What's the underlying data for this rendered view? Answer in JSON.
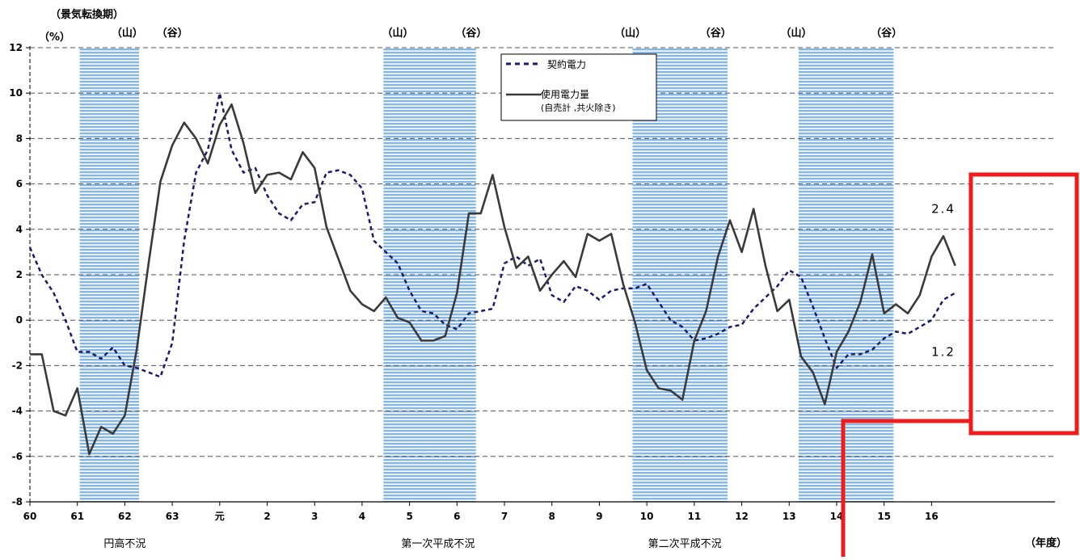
{
  "chart_data": {
    "type": "line",
    "y_unit_label": "（景気転換期）",
    "y_axis_label": "（%）",
    "x_unit_label": "（年度）",
    "ylim": [
      -8,
      12
    ],
    "yticks": [
      -8,
      -6,
      -4,
      -2,
      0,
      2,
      4,
      6,
      8,
      10,
      12
    ],
    "xlim": [
      60,
      81.6
    ],
    "xticks": [
      {
        "x": 60,
        "label": "60"
      },
      {
        "x": 61,
        "label": "61"
      },
      {
        "x": 62,
        "label": "62"
      },
      {
        "x": 63,
        "label": "63"
      },
      {
        "x": 64,
        "label": "元"
      },
      {
        "x": 65,
        "label": "2"
      },
      {
        "x": 66,
        "label": "3"
      },
      {
        "x": 67,
        "label": "4"
      },
      {
        "x": 68,
        "label": "5"
      },
      {
        "x": 69,
        "label": "6"
      },
      {
        "x": 70,
        "label": "7"
      },
      {
        "x": 71,
        "label": "8"
      },
      {
        "x": 72,
        "label": "9"
      },
      {
        "x": 73,
        "label": "10"
      },
      {
        "x": 74,
        "label": "11"
      },
      {
        "x": 75,
        "label": "12"
      },
      {
        "x": 76,
        "label": "13"
      },
      {
        "x": 77,
        "label": "14"
      },
      {
        "x": 78,
        "label": "15"
      },
      {
        "x": 79,
        "label": "16"
      }
    ],
    "grid": true,
    "recession_bands": [
      {
        "start": 61.05,
        "end": 62.3
      },
      {
        "start": 67.45,
        "end": 69.4
      },
      {
        "start": 72.7,
        "end": 74.7
      },
      {
        "start": 76.2,
        "end": 78.2
      }
    ],
    "turning_points": [
      {
        "label": "（山）",
        "x": 62.05
      },
      {
        "label": "（谷）",
        "x": 63.0
      },
      {
        "label": "（山）",
        "x": 67.75
      },
      {
        "label": "（谷）",
        "x": 69.3
      },
      {
        "label": "（山）",
        "x": 72.65
      },
      {
        "label": "（谷）",
        "x": 74.45
      },
      {
        "label": "（山）",
        "x": 76.15
      },
      {
        "label": "（谷）",
        "x": 78.05
      }
    ],
    "period_labels": [
      {
        "label": "円高不況",
        "x": 62.0
      },
      {
        "label": "第一次平成不況",
        "x": 68.6
      },
      {
        "label": "第二次平成不況",
        "x": 73.8
      }
    ],
    "series": [
      {
        "name": "契約電力",
        "style": "dashed",
        "color": "#1a1a6e",
        "x": [
          60.0,
          60.25,
          60.5,
          60.75,
          61.0,
          61.25,
          61.5,
          61.75,
          62.0,
          62.25,
          62.5,
          62.75,
          63.0,
          63.25,
          63.5,
          63.75,
          64.0,
          64.25,
          64.5,
          64.75,
          65.0,
          65.25,
          65.5,
          65.75,
          66.0,
          66.25,
          66.5,
          66.75,
          67.0,
          67.25,
          67.5,
          67.75,
          68.0,
          68.25,
          68.5,
          68.75,
          69.0,
          69.25,
          69.5,
          69.75,
          70.0,
          70.25,
          70.5,
          70.75,
          71.0,
          71.25,
          71.5,
          71.75,
          72.0,
          72.25,
          72.5,
          72.75,
          73.0,
          73.25,
          73.5,
          73.75,
          74.0,
          74.25,
          74.5,
          74.75,
          75.0,
          75.25,
          75.5,
          75.75,
          76.0,
          76.25,
          76.5,
          76.75,
          77.0,
          77.25,
          77.5,
          77.75,
          78.0,
          78.25,
          78.5,
          78.75,
          79.0,
          79.25,
          79.5
        ],
        "values": [
          3.2,
          2.0,
          1.2,
          0.0,
          -1.4,
          -1.4,
          -1.7,
          -1.2,
          -2.0,
          -2.1,
          -2.3,
          -2.5,
          -1.0,
          3.5,
          6.5,
          7.5,
          10.0,
          7.5,
          6.5,
          6.7,
          5.5,
          4.7,
          4.4,
          5.1,
          5.2,
          6.5,
          6.6,
          6.4,
          5.8,
          3.5,
          3.0,
          2.5,
          1.3,
          0.4,
          0.3,
          -0.2,
          -0.4,
          0.3,
          0.4,
          0.5,
          2.5,
          2.8,
          2.4,
          2.7,
          1.1,
          0.8,
          1.5,
          1.3,
          0.9,
          1.3,
          1.4,
          1.4,
          1.6,
          0.8,
          0.0,
          -0.3,
          -0.9,
          -0.8,
          -0.6,
          -0.3,
          -0.2,
          0.5,
          1.0,
          1.5,
          2.2,
          1.9,
          0.6,
          -0.8,
          -2.1,
          -1.5,
          -1.5,
          -1.3,
          -0.8,
          -0.5,
          -0.6,
          -0.3,
          0.0,
          0.9,
          1.2
        ]
      },
      {
        "name": "使用電力量",
        "name_line2": "(自売計 ,共火除き)",
        "style": "solid",
        "color": "#3a3a3a",
        "x": [
          60.0,
          60.25,
          60.5,
          60.75,
          61.0,
          61.25,
          61.5,
          61.75,
          62.0,
          62.25,
          62.5,
          62.75,
          63.0,
          63.25,
          63.5,
          63.75,
          64.0,
          64.25,
          64.5,
          64.75,
          65.0,
          65.25,
          65.5,
          65.75,
          66.0,
          66.25,
          66.5,
          66.75,
          67.0,
          67.25,
          67.5,
          67.75,
          68.0,
          68.25,
          68.5,
          68.75,
          69.0,
          69.25,
          69.5,
          69.75,
          70.0,
          70.25,
          70.5,
          70.75,
          71.0,
          71.25,
          71.5,
          71.75,
          72.0,
          72.25,
          72.5,
          72.75,
          73.0,
          73.25,
          73.5,
          73.75,
          74.0,
          74.25,
          74.5,
          74.75,
          75.0,
          75.25,
          75.5,
          75.75,
          76.0,
          76.25,
          76.5,
          76.75,
          77.0,
          77.25,
          77.5,
          77.75,
          78.0,
          78.25,
          78.5,
          78.75,
          79.0,
          79.25,
          79.5
        ],
        "values": [
          -1.5,
          -1.5,
          -4.0,
          -4.2,
          -3.0,
          -5.9,
          -4.7,
          -5.0,
          -4.2,
          -1.3,
          2.5,
          6.1,
          7.7,
          8.7,
          8.0,
          6.9,
          8.6,
          9.5,
          7.8,
          5.6,
          6.4,
          6.5,
          6.2,
          7.4,
          6.7,
          4.1,
          2.7,
          1.3,
          0.7,
          0.4,
          1.0,
          0.1,
          -0.1,
          -0.9,
          -0.9,
          -0.7,
          1.2,
          4.7,
          4.7,
          6.4,
          4.1,
          2.3,
          2.8,
          1.3,
          2.0,
          2.6,
          1.9,
          3.8,
          3.5,
          3.8,
          1.6,
          -0.1,
          -2.2,
          -3.0,
          -3.1,
          -3.5,
          -0.9,
          0.4,
          2.8,
          4.4,
          3.0,
          4.9,
          2.4,
          0.4,
          0.9,
          -1.6,
          -2.3,
          -3.7,
          -1.4,
          -0.5,
          0.8,
          2.9,
          0.3,
          0.7,
          0.3,
          1.1,
          2.8,
          3.7,
          2.4
        ]
      }
    ],
    "annotations": [
      {
        "text": "2.4",
        "x": 79.25,
        "y": 4.9
      },
      {
        "text": "1.2",
        "x": 79.25,
        "y": -1.4
      }
    ]
  }
}
